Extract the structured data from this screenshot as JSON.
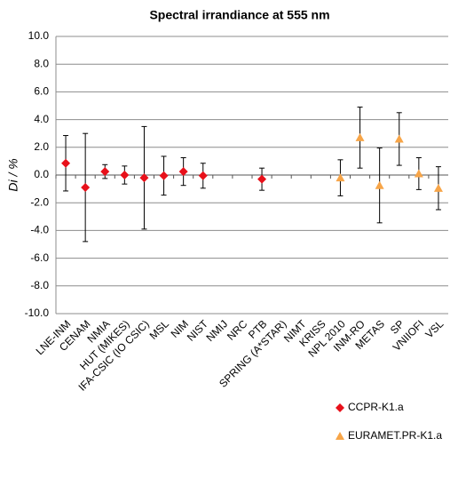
{
  "chart_data": {
    "type": "errorbar",
    "title": "Spectral irrandiance at 555 nm",
    "ylabel": "Di / %",
    "categories": [
      "LNE-INM",
      "CENAM",
      "NMIA",
      "HUT (MIKES)",
      "IFA-CSIC (IO CSIC)",
      "MSL",
      "NIM",
      "NIST",
      "NMIJ",
      "NRC",
      "PTB",
      "SPRING (A*STAR)",
      "NIMT",
      "KRISS",
      "NPL 2010",
      "INM-RO",
      "METAS",
      "SP",
      "VNIIOFI",
      "VSL"
    ],
    "series": [
      {
        "name": "CCPR-K1.a",
        "color": "#e8101a",
        "marker": "diamond",
        "values": [
          0.85,
          -0.9,
          0.25,
          0.0,
          -0.2,
          -0.05,
          0.25,
          -0.05,
          null,
          null,
          -0.3,
          null,
          null,
          null,
          null,
          null,
          null,
          null,
          null,
          null
        ],
        "errors": [
          2.0,
          3.9,
          0.5,
          0.65,
          3.7,
          1.4,
          1.0,
          0.9,
          null,
          null,
          0.8,
          null,
          null,
          null,
          null,
          null,
          null,
          null,
          null,
          null
        ]
      },
      {
        "name": "EURAMET.PR-K1.a",
        "color": "#f7a548",
        "marker": "triangle",
        "values": [
          null,
          null,
          null,
          null,
          null,
          null,
          null,
          null,
          null,
          null,
          null,
          null,
          null,
          null,
          -0.2,
          2.7,
          -0.75,
          2.6,
          0.1,
          -0.95
        ],
        "errors": [
          null,
          null,
          null,
          null,
          null,
          null,
          null,
          null,
          null,
          null,
          null,
          null,
          null,
          null,
          1.3,
          2.2,
          2.7,
          1.9,
          1.15,
          1.55
        ]
      }
    ],
    "ylim": [
      -10,
      10
    ],
    "yticks": [
      {
        "value": -10,
        "label": "-10.0"
      },
      {
        "value": -8,
        "label": "-8.0"
      },
      {
        "value": -6,
        "label": "-6.0"
      },
      {
        "value": -4,
        "label": "-4.0"
      },
      {
        "value": -2,
        "label": "-2.0"
      },
      {
        "value": 0,
        "label": "0.0"
      },
      {
        "value": 2,
        "label": "2.0"
      },
      {
        "value": 4,
        "label": "4.0"
      },
      {
        "value": 6,
        "label": "6.0"
      },
      {
        "value": 8,
        "label": "8.0"
      },
      {
        "value": 10,
        "label": "10.0"
      }
    ],
    "grid": true,
    "legend": "bottom-right"
  }
}
